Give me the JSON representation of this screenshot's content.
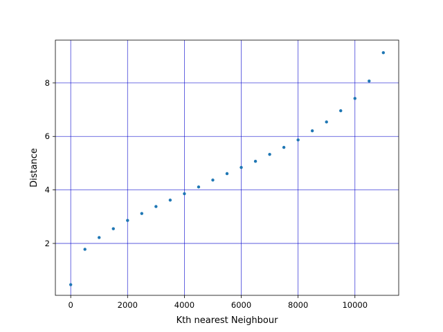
{
  "chart_data": {
    "type": "scatter",
    "title": "",
    "xlabel": "Kth nearest Neighbour",
    "ylabel": "Distance",
    "xlim": [
      -540,
      11540
    ],
    "ylim": [
      0.06,
      9.6
    ],
    "xticks": [
      0,
      2000,
      4000,
      6000,
      8000,
      10000
    ],
    "yticks": [
      2,
      4,
      6,
      8
    ],
    "xtick_labels": [
      "0",
      "2000",
      "4000",
      "6000",
      "8000",
      "10000"
    ],
    "ytick_labels": [
      "2",
      "4",
      "6",
      "8"
    ],
    "grid": true,
    "legend": "none",
    "colors": {
      "points": "#1f77b4",
      "grid": "#0000cc",
      "axes": "#000000"
    },
    "series": [
      {
        "x": [
          0,
          500,
          1000,
          1500,
          2000,
          2500,
          3000,
          3500,
          4000,
          4500,
          5000,
          5500,
          6000,
          6500,
          7000,
          7500,
          8000,
          8500,
          9000,
          9500,
          10000,
          10500,
          11000
        ],
        "y": [
          0.46,
          1.78,
          2.22,
          2.55,
          2.86,
          3.12,
          3.38,
          3.62,
          3.86,
          4.11,
          4.37,
          4.61,
          4.84,
          5.07,
          5.33,
          5.59,
          5.87,
          6.21,
          6.54,
          6.96,
          7.42,
          8.07,
          9.13
        ]
      }
    ]
  }
}
